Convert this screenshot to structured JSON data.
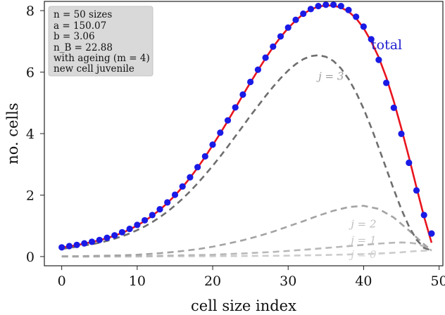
{
  "chart_data": {
    "type": "line",
    "xlabel": "cell size index",
    "ylabel": "no. cells",
    "xlim": [
      -2.3,
      50.5
    ],
    "ylim": [
      -0.3,
      8.3
    ],
    "xticks": [
      0,
      10,
      20,
      30,
      40,
      50
    ],
    "yticks": [
      0,
      2,
      4,
      6,
      8
    ],
    "grid": false,
    "info_box": {
      "lines": [
        "n = 50 sizes",
        "a = 150.07",
        "b = 3.06",
        "n_B = 22.88",
        "with ageing (m = 4)",
        "new cell juvenile"
      ]
    },
    "total_label": "total",
    "colors": {
      "points": "#1a1ae6",
      "total_line": "#e8141e",
      "j3": "#6e6e6e",
      "j2": "#a3a3a3",
      "j1": "#b8b8b8",
      "j0": "#cccccc",
      "total_text": "#2020d0",
      "box_fill": "#d9d9d9"
    },
    "series": [
      {
        "name": "total",
        "kind": "points",
        "x": [
          0,
          1,
          2,
          3,
          4,
          5,
          6,
          7,
          8,
          9,
          10,
          11,
          12,
          13,
          14,
          15,
          16,
          17,
          18,
          19,
          20,
          21,
          22,
          23,
          24,
          25,
          26,
          27,
          28,
          29,
          30,
          31,
          32,
          33,
          34,
          35,
          36,
          37,
          38,
          39,
          40,
          41,
          42,
          43,
          44,
          45,
          46,
          47,
          48,
          49
        ],
        "y": [
          0.3,
          0.34,
          0.38,
          0.43,
          0.48,
          0.54,
          0.61,
          0.69,
          0.79,
          0.9,
          1.03,
          1.18,
          1.35,
          1.54,
          1.76,
          2.01,
          2.28,
          2.58,
          2.91,
          3.26,
          3.64,
          4.03,
          4.43,
          4.85,
          5.27,
          5.68,
          6.08,
          6.47,
          6.83,
          7.16,
          7.45,
          7.7,
          7.9,
          8.05,
          8.15,
          8.19,
          8.19,
          8.15,
          8.02,
          7.8,
          7.48,
          7.07,
          6.4,
          5.65,
          4.84,
          3.99,
          3.05,
          2.15,
          1.35,
          0.75
        ]
      },
      {
        "name": "total",
        "kind": "line",
        "x": [
          0,
          1,
          2,
          3,
          4,
          5,
          6,
          7,
          8,
          9,
          10,
          11,
          12,
          13,
          14,
          15,
          16,
          17,
          18,
          19,
          20,
          21,
          22,
          23,
          24,
          25,
          26,
          27,
          28,
          29,
          30,
          31,
          32,
          33,
          34,
          35,
          36,
          37,
          38,
          39,
          40,
          41,
          42,
          43,
          44,
          45,
          46,
          47,
          48,
          49
        ],
        "y": [
          0.3,
          0.33,
          0.37,
          0.42,
          0.47,
          0.53,
          0.6,
          0.68,
          0.77,
          0.88,
          1.01,
          1.16,
          1.33,
          1.52,
          1.74,
          1.99,
          2.26,
          2.56,
          2.89,
          3.24,
          3.62,
          4.01,
          4.41,
          4.83,
          5.25,
          5.66,
          6.06,
          6.45,
          6.81,
          7.14,
          7.43,
          7.68,
          7.89,
          8.04,
          8.13,
          8.17,
          8.16,
          8.1,
          7.97,
          7.75,
          7.43,
          7.0,
          6.48,
          5.83,
          5.05,
          4.17,
          3.23,
          2.25,
          1.3,
          0.45
        ]
      },
      {
        "name": "j = 3",
        "kind": "dashed",
        "x": [
          0,
          1,
          2,
          3,
          4,
          5,
          6,
          7,
          8,
          9,
          10,
          11,
          12,
          13,
          14,
          15,
          16,
          17,
          18,
          19,
          20,
          21,
          22,
          23,
          24,
          25,
          26,
          27,
          28,
          29,
          30,
          31,
          32,
          33,
          34,
          35,
          36,
          37,
          38,
          39,
          40,
          41,
          42,
          43,
          44,
          45,
          46,
          47,
          48,
          49
        ],
        "y": [
          0.25,
          0.28,
          0.32,
          0.36,
          0.4,
          0.45,
          0.51,
          0.58,
          0.66,
          0.75,
          0.86,
          0.98,
          1.12,
          1.28,
          1.46,
          1.66,
          1.88,
          2.12,
          2.38,
          2.66,
          2.95,
          3.26,
          3.58,
          3.91,
          4.24,
          4.58,
          4.9,
          5.22,
          5.52,
          5.8,
          6.05,
          6.26,
          6.42,
          6.52,
          6.55,
          6.5,
          6.36,
          6.12,
          5.78,
          5.34,
          4.81,
          4.2,
          3.54,
          2.86,
          2.18,
          1.54,
          0.98,
          0.55,
          0.28,
          0.2
        ]
      },
      {
        "name": "j = 2",
        "kind": "dashed",
        "x": [
          0,
          2,
          4,
          6,
          8,
          10,
          12,
          14,
          16,
          18,
          20,
          22,
          24,
          26,
          28,
          30,
          32,
          34,
          36,
          38,
          40,
          42,
          44,
          46,
          48,
          49
        ],
        "y": [
          0.01,
          0.01,
          0.02,
          0.03,
          0.04,
          0.06,
          0.09,
          0.13,
          0.18,
          0.24,
          0.32,
          0.42,
          0.53,
          0.66,
          0.81,
          0.98,
          1.15,
          1.33,
          1.49,
          1.61,
          1.65,
          1.55,
          1.27,
          0.85,
          0.4,
          0.2
        ]
      },
      {
        "name": "j = 1",
        "kind": "dashed",
        "x": [
          0,
          4,
          8,
          12,
          16,
          20,
          24,
          28,
          32,
          36,
          40,
          42,
          44,
          45,
          46,
          47,
          48,
          49
        ],
        "y": [
          0.0,
          0.0,
          0.01,
          0.02,
          0.04,
          0.06,
          0.1,
          0.15,
          0.22,
          0.3,
          0.38,
          0.42,
          0.45,
          0.46,
          0.45,
          0.42,
          0.33,
          0.2
        ]
      },
      {
        "name": "j = 0",
        "kind": "dashed",
        "x": [
          0,
          5,
          10,
          15,
          20,
          25,
          30,
          35,
          40,
          43,
          45,
          46,
          47,
          48,
          49
        ],
        "y": [
          0.0,
          0.0,
          0.0,
          0.01,
          0.01,
          0.02,
          0.03,
          0.05,
          0.08,
          0.11,
          0.14,
          0.16,
          0.18,
          0.19,
          0.2
        ]
      }
    ],
    "curve_labels": [
      {
        "text": "j = 3",
        "at_x": 34,
        "at_y": 5.75
      },
      {
        "text": "j = 2",
        "at_x": 38.3,
        "at_y": 0.95
      },
      {
        "text": "j = 1",
        "at_x": 38.3,
        "at_y": 0.42
      },
      {
        "text": "j = 0",
        "at_x": 38.3,
        "at_y": -0.05
      }
    ]
  }
}
